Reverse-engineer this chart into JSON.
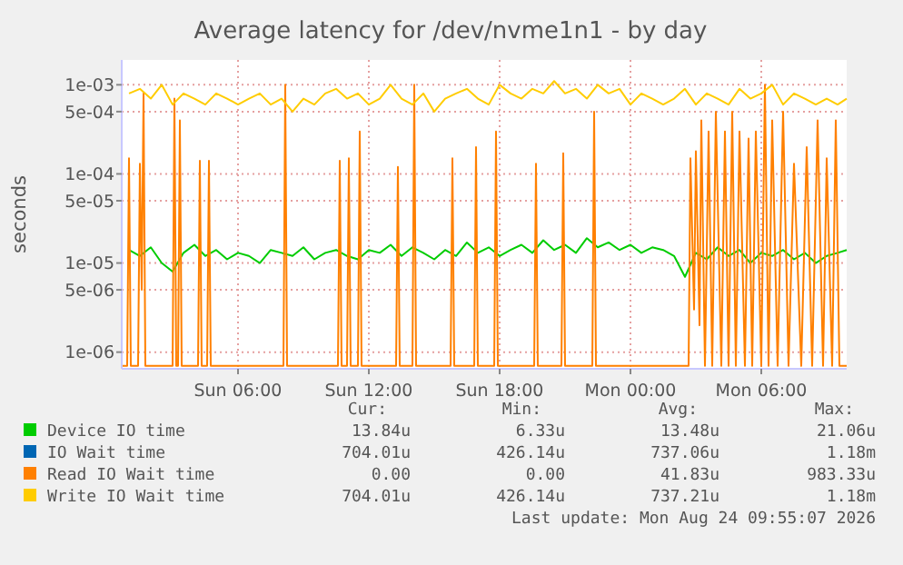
{
  "chart_data": {
    "type": "line",
    "title": "Average latency for /dev/nvme1n1 - by day",
    "ylabel": "seconds",
    "log": "y",
    "grid": true,
    "legend": "bottom",
    "xlim": [
      "2026-08-23T00:40",
      "2026-08-24T09:55"
    ],
    "xticks": [
      {
        "value": "2026-08-23T06:00",
        "label": "Sun 06:00"
      },
      {
        "value": "2026-08-23T12:00",
        "label": "Sun 12:00"
      },
      {
        "value": "2026-08-23T18:00",
        "label": "Sun 18:00"
      },
      {
        "value": "2026-08-24T00:00",
        "label": "Mon 00:00"
      },
      {
        "value": "2026-08-24T06:00",
        "label": "Mon 06:00"
      }
    ],
    "ylim": [
      6.5e-07,
      0.0019
    ],
    "yticks": [
      {
        "value": 1e-06,
        "label": "1e-06"
      },
      {
        "value": 5e-06,
        "label": "5e-06"
      },
      {
        "value": 1e-05,
        "label": "1e-05"
      },
      {
        "value": 5e-05,
        "label": "5e-05"
      },
      {
        "value": 0.0001,
        "label": "1e-04"
      },
      {
        "value": 0.0005,
        "label": "5e-04"
      },
      {
        "value": 0.001,
        "label": "1e-03"
      }
    ],
    "x": [
      "2026-08-23T01:00",
      "2026-08-23T01:30",
      "2026-08-23T02:00",
      "2026-08-23T02:30",
      "2026-08-23T03:00",
      "2026-08-23T03:30",
      "2026-08-23T04:00",
      "2026-08-23T04:30",
      "2026-08-23T05:00",
      "2026-08-23T05:30",
      "2026-08-23T06:00",
      "2026-08-23T06:30",
      "2026-08-23T07:00",
      "2026-08-23T07:30",
      "2026-08-23T08:00",
      "2026-08-23T08:30",
      "2026-08-23T09:00",
      "2026-08-23T09:30",
      "2026-08-23T10:00",
      "2026-08-23T10:30",
      "2026-08-23T11:00",
      "2026-08-23T11:30",
      "2026-08-23T12:00",
      "2026-08-23T12:30",
      "2026-08-23T13:00",
      "2026-08-23T13:30",
      "2026-08-23T14:00",
      "2026-08-23T14:30",
      "2026-08-23T15:00",
      "2026-08-23T15:30",
      "2026-08-23T16:00",
      "2026-08-23T16:30",
      "2026-08-23T17:00",
      "2026-08-23T17:30",
      "2026-08-23T18:00",
      "2026-08-23T18:30",
      "2026-08-23T19:00",
      "2026-08-23T19:30",
      "2026-08-23T20:00",
      "2026-08-23T20:30",
      "2026-08-23T21:00",
      "2026-08-23T21:30",
      "2026-08-23T22:00",
      "2026-08-23T22:30",
      "2026-08-23T23:00",
      "2026-08-23T23:30",
      "2026-08-24T00:00",
      "2026-08-24T00:30",
      "2026-08-24T01:00",
      "2026-08-24T01:30",
      "2026-08-24T02:00",
      "2026-08-24T02:30",
      "2026-08-24T03:00",
      "2026-08-24T03:30",
      "2026-08-24T04:00",
      "2026-08-24T04:30",
      "2026-08-24T05:00",
      "2026-08-24T05:30",
      "2026-08-24T06:00",
      "2026-08-24T06:30",
      "2026-08-24T07:00",
      "2026-08-24T07:30",
      "2026-08-24T08:00",
      "2026-08-24T08:30",
      "2026-08-24T09:00",
      "2026-08-24T09:30",
      "2026-08-24T09:55"
    ],
    "series": [
      {
        "name": "Device IO time",
        "color": "#00cc00",
        "values": [
          1.4e-05,
          1.2e-05,
          1.5e-05,
          1e-05,
          8e-06,
          1.3e-05,
          1.6e-05,
          1.2e-05,
          1.4e-05,
          1.1e-05,
          1.3e-05,
          1.2e-05,
          1e-05,
          1.4e-05,
          1.3e-05,
          1.2e-05,
          1.5e-05,
          1.1e-05,
          1.3e-05,
          1.4e-05,
          1.2e-05,
          1.1e-05,
          1.4e-05,
          1.3e-05,
          1.6e-05,
          1.2e-05,
          1.5e-05,
          1.3e-05,
          1.1e-05,
          1.4e-05,
          1.2e-05,
          1.7e-05,
          1.3e-05,
          1.5e-05,
          1.2e-05,
          1.4e-05,
          1.6e-05,
          1.3e-05,
          1.8e-05,
          1.4e-05,
          1.6e-05,
          1.3e-05,
          1.9e-05,
          1.5e-05,
          1.7e-05,
          1.4e-05,
          1.6e-05,
          1.3e-05,
          1.5e-05,
          1.4e-05,
          1.2e-05,
          7e-06,
          1.3e-05,
          1.1e-05,
          1.5e-05,
          1.2e-05,
          1.4e-05,
          1e-05,
          1.3e-05,
          1.2e-05,
          1.4e-05,
          1.1e-05,
          1.3e-05,
          1e-05,
          1.2e-05,
          1.3e-05,
          1.4e-05
        ]
      },
      {
        "name": "IO Wait time",
        "color": "#0066b3",
        "values": [
          null,
          null,
          null,
          null,
          null,
          null,
          null,
          null,
          null,
          null,
          null,
          null,
          null,
          null,
          null,
          null,
          null,
          null,
          null,
          null,
          null,
          null,
          null,
          null,
          null,
          null,
          null,
          null,
          null,
          null,
          null,
          null,
          null,
          null,
          null,
          null,
          null,
          null,
          null,
          null,
          null,
          null,
          null,
          null,
          null,
          null,
          null,
          null,
          null,
          null,
          null,
          null,
          null,
          null,
          null,
          null,
          null,
          null,
          null,
          null,
          null,
          null,
          null,
          null,
          null,
          null,
          null
        ]
      },
      {
        "name": "Read IO Wait time",
        "color": "#ff8000",
        "x": [
          "2026-08-23T00:40",
          "2026-08-23T00:55",
          "2026-08-23T01:00",
          "2026-08-23T01:05",
          "2026-08-23T01:25",
          "2026-08-23T01:30",
          "2026-08-23T01:35",
          "2026-08-23T01:40",
          "2026-08-23T01:45",
          "2026-08-23T03:00",
          "2026-08-23T03:05",
          "2026-08-23T03:10",
          "2026-08-23T03:15",
          "2026-08-23T03:20",
          "2026-08-23T03:25",
          "2026-08-23T04:10",
          "2026-08-23T04:15",
          "2026-08-23T04:20",
          "2026-08-23T04:35",
          "2026-08-23T04:40",
          "2026-08-23T04:45",
          "2026-08-23T08:05",
          "2026-08-23T08:10",
          "2026-08-23T08:15",
          "2026-08-23T10:35",
          "2026-08-23T10:40",
          "2026-08-23T10:45",
          "2026-08-23T11:00",
          "2026-08-23T11:05",
          "2026-08-23T11:10",
          "2026-08-23T11:30",
          "2026-08-23T11:35",
          "2026-08-23T11:40",
          "2026-08-23T13:15",
          "2026-08-23T13:20",
          "2026-08-23T13:25",
          "2026-08-23T14:00",
          "2026-08-23T14:05",
          "2026-08-23T14:10",
          "2026-08-23T15:45",
          "2026-08-23T15:50",
          "2026-08-23T15:55",
          "2026-08-23T16:50",
          "2026-08-23T16:55",
          "2026-08-23T17:00",
          "2026-08-23T17:45",
          "2026-08-23T17:50",
          "2026-08-23T17:55",
          "2026-08-23T19:35",
          "2026-08-23T19:40",
          "2026-08-23T19:45",
          "2026-08-23T20:50",
          "2026-08-23T20:55",
          "2026-08-23T21:00",
          "2026-08-23T22:15",
          "2026-08-23T22:20",
          "2026-08-23T22:25",
          "2026-08-24T02:40",
          "2026-08-24T02:45",
          "2026-08-24T02:55",
          "2026-08-24T03:00",
          "2026-08-24T03:10",
          "2026-08-24T03:15",
          "2026-08-24T03:25",
          "2026-08-24T03:35",
          "2026-08-24T03:45",
          "2026-08-24T03:55",
          "2026-08-24T04:10",
          "2026-08-24T04:20",
          "2026-08-24T04:30",
          "2026-08-24T04:40",
          "2026-08-24T04:50",
          "2026-08-24T05:00",
          "2026-08-24T05:15",
          "2026-08-24T05:25",
          "2026-08-24T05:35",
          "2026-08-24T05:45",
          "2026-08-24T06:00",
          "2026-08-24T06:10",
          "2026-08-24T06:20",
          "2026-08-24T06:30",
          "2026-08-24T06:45",
          "2026-08-24T07:00",
          "2026-08-24T07:15",
          "2026-08-24T07:30",
          "2026-08-24T07:50",
          "2026-08-24T08:05",
          "2026-08-24T08:20",
          "2026-08-24T08:35",
          "2026-08-24T08:50",
          "2026-08-24T09:00",
          "2026-08-24T09:15",
          "2026-08-24T09:25",
          "2026-08-24T09:35",
          "2026-08-24T09:55"
        ],
        "values": [
          7e-07,
          7e-07,
          0.00015,
          7e-07,
          7e-07,
          0.00013,
          5e-06,
          0.0008,
          7e-07,
          7e-07,
          0.0007,
          7e-07,
          7e-07,
          0.0004,
          7e-07,
          7e-07,
          0.00014,
          7e-07,
          7e-07,
          0.00014,
          7e-07,
          7e-07,
          0.001,
          7e-07,
          7e-07,
          0.00014,
          7e-07,
          7e-07,
          0.00015,
          7e-07,
          7e-07,
          0.0003,
          7e-07,
          7e-07,
          0.00012,
          7e-07,
          7e-07,
          0.001,
          7e-07,
          7e-07,
          0.00015,
          7e-07,
          7e-07,
          0.0002,
          7e-07,
          7e-07,
          0.0003,
          7e-07,
          7e-07,
          0.00013,
          7e-07,
          7e-07,
          0.00017,
          7e-07,
          7e-07,
          0.0005,
          7e-07,
          7e-07,
          0.00015,
          3e-06,
          0.00018,
          2e-06,
          0.0004,
          7e-07,
          0.0003,
          7e-07,
          0.0005,
          7e-07,
          0.0003,
          7e-07,
          0.0005,
          7e-07,
          0.0003,
          7e-07,
          0.00025,
          7e-07,
          0.0003,
          7e-07,
          0.001,
          7e-07,
          0.0004,
          7e-07,
          0.0005,
          7e-07,
          0.00013,
          7e-07,
          0.0002,
          7e-07,
          0.0004,
          7e-07,
          0.00015,
          7e-07,
          0.0004,
          7e-07,
          7e-07
        ]
      },
      {
        "name": "Write IO Wait time",
        "color": "#ffcc00",
        "values": [
          0.0008,
          0.0009,
          0.0007,
          0.001,
          0.0006,
          0.0008,
          0.0007,
          0.0006,
          0.0008,
          0.0007,
          0.0006,
          0.0007,
          0.0008,
          0.0006,
          0.0007,
          0.0005,
          0.0007,
          0.0006,
          0.0008,
          0.0009,
          0.0007,
          0.0008,
          0.0006,
          0.0007,
          0.001,
          0.0007,
          0.0006,
          0.0008,
          0.0005,
          0.0007,
          0.0008,
          0.0009,
          0.0007,
          0.0006,
          0.001,
          0.0008,
          0.0007,
          0.0009,
          0.0008,
          0.0011,
          0.0008,
          0.0009,
          0.0007,
          0.001,
          0.0008,
          0.0009,
          0.0006,
          0.0008,
          0.0007,
          0.0006,
          0.0007,
          0.0009,
          0.0006,
          0.0008,
          0.0007,
          0.0006,
          0.0009,
          0.0007,
          0.0008,
          0.001,
          0.0006,
          0.0008,
          0.0007,
          0.0006,
          0.0007,
          0.0006,
          0.0007
        ]
      }
    ],
    "annotations": [
      "Cur:",
      "Min:",
      "Avg:",
      "Max:",
      "13.84u",
      "6.33u",
      "13.48u",
      "21.06u",
      "704.01u",
      "426.14u",
      "737.06u",
      "1.18m",
      "0.00",
      "0.00",
      "41.83u",
      "983.33u",
      "704.01u",
      "426.14u",
      "737.21u",
      "1.18m",
      "Last update: Mon Aug 24 09:55:07 2026"
    ]
  }
}
